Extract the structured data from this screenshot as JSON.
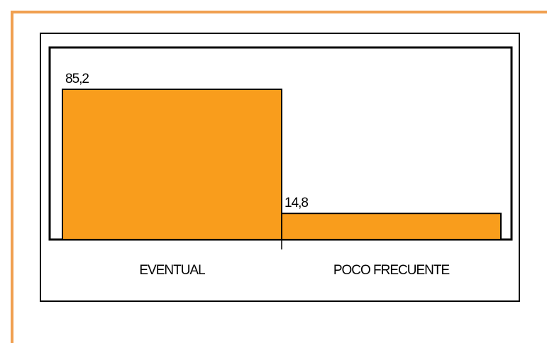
{
  "chart_data": {
    "type": "bar",
    "categories": [
      "EVENTUAL",
      "POCO FRECUENTE"
    ],
    "values": [
      85.2,
      14.8
    ],
    "value_labels": [
      "85,2",
      "14,8"
    ],
    "color": "#f99d1c"
  }
}
